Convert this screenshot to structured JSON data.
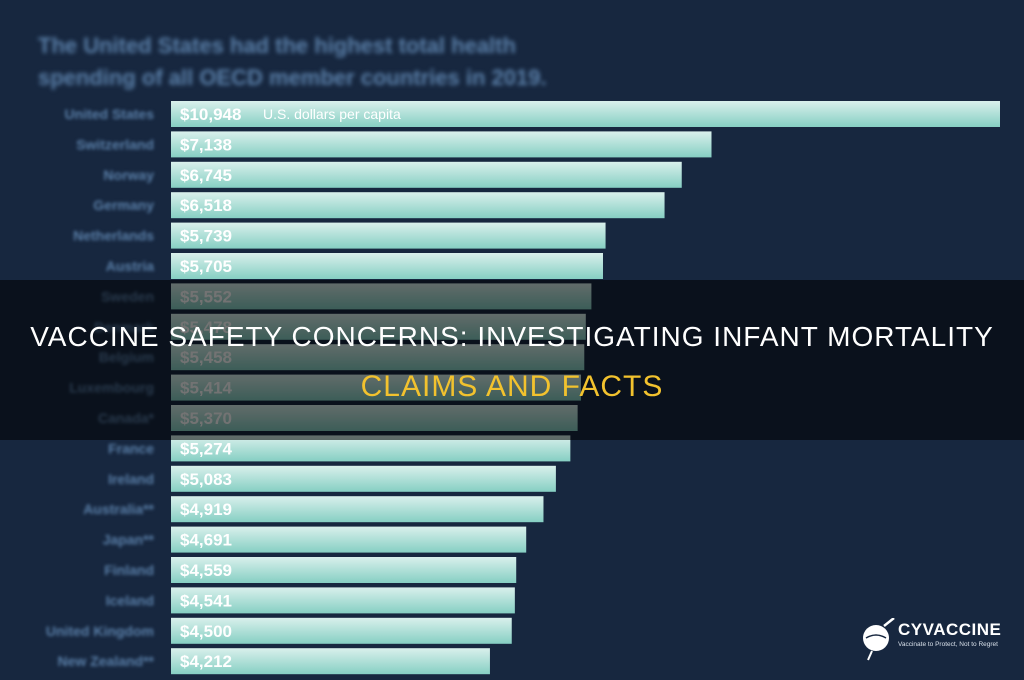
{
  "chart_data": {
    "type": "bar",
    "orientation": "horizontal",
    "title": "The United States had the highest total health spending of all OECD member countries in 2019.",
    "unit_label": "U.S. dollars per capita",
    "categories": [
      "United States",
      "Switzerland",
      "Norway",
      "Germany",
      "Netherlands",
      "Austria",
      "Sweden",
      "Denmark",
      "Belgium",
      "Luxembourg",
      "Canada*",
      "France",
      "Ireland",
      "Australia**",
      "Japan**",
      "Finland",
      "Iceland",
      "United Kingdom",
      "New Zealand**"
    ],
    "values": [
      10948,
      7138,
      6745,
      6518,
      5739,
      5705,
      5552,
      5478,
      5458,
      5414,
      5370,
      5274,
      5083,
      4919,
      4691,
      4559,
      4541,
      4500,
      4212
    ],
    "value_labels": [
      "$10,948",
      "$7,138",
      "$6,745",
      "$6,518",
      "$5,739",
      "$5,705",
      "$5,552",
      "$5,478",
      "$5,458",
      "$5,414",
      "$5,370",
      "$5,274",
      "$5,083",
      "$4,919",
      "$4,691",
      "$4,559",
      "$4,541",
      "$4,500",
      "$4,212"
    ],
    "xlim": [
      0,
      10948
    ],
    "colors": {
      "bar": "#86cfc3",
      "bar_light": "#d9f0ec",
      "category_label": "#5a7fa8",
      "value_label": "#ffffff",
      "background": "#17273f"
    }
  },
  "overlay": {
    "line1": "VACCINE SAFETY CONCERNS: INVESTIGATING INFANT MORTALITY",
    "line2": "CLAIMS AND FACTS",
    "line1_color": "#ffffff",
    "line2_color": "#f2c22e"
  },
  "logo": {
    "name": "CYVACCINE",
    "tagline": "Vaccinate to Protect, Not to Regret",
    "icon": "syringe-globe-icon"
  }
}
